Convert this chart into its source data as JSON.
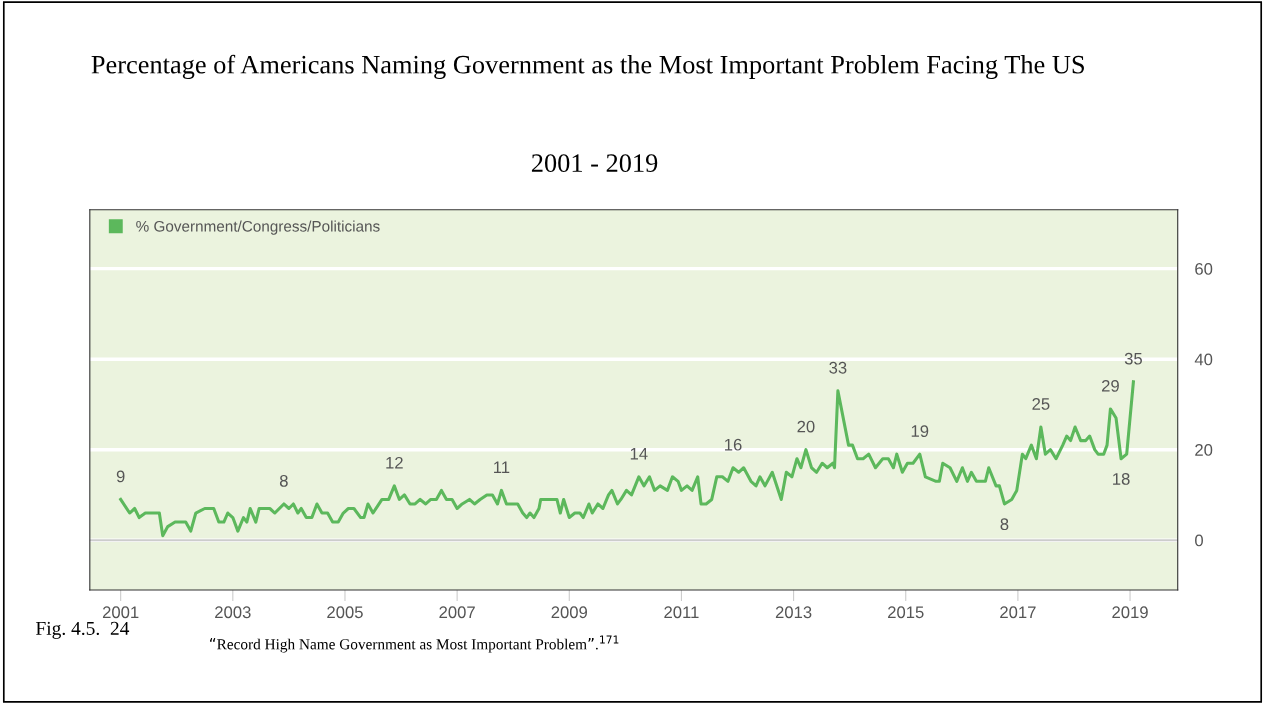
{
  "chart_data": {
    "type": "line",
    "title": "Percentage of Americans Naming Government as the Most Important Problem Facing The US",
    "subtitle": "2001 - 2019",
    "annotations": [
      "Fig. 4.5.  24",
      "“Record High Name Government as Most Important Problem”.$^{171}$"
    ],
    "x": [
      2001.0,
      2001.16,
      2001.25,
      2001.33,
      2001.44,
      2001.53,
      2001.63,
      2001.69,
      2001.75,
      2001.84,
      2001.97,
      2002.06,
      2002.16,
      2002.25,
      2002.34,
      2002.5,
      2002.66,
      2002.75,
      2002.84,
      2002.91,
      2003.0,
      2003.09,
      2003.19,
      2003.25,
      2003.31,
      2003.41,
      2003.47,
      2003.66,
      2003.75,
      2003.91,
      2004.0,
      2004.08,
      2004.16,
      2004.22,
      2004.31,
      2004.41,
      2004.5,
      2004.59,
      2004.69,
      2004.78,
      2004.88,
      2004.97,
      2005.06,
      2005.16,
      2005.28,
      2005.34,
      2005.41,
      2005.5,
      2005.66,
      2005.78,
      2005.88,
      2005.97,
      2006.06,
      2006.16,
      2006.25,
      2006.34,
      2006.44,
      2006.53,
      2006.63,
      2006.72,
      2006.81,
      2006.91,
      2007.0,
      2007.09,
      2007.22,
      2007.31,
      2007.41,
      2007.53,
      2007.63,
      2007.72,
      2007.79,
      2007.88,
      2007.97,
      2008.08,
      2008.17,
      2008.24,
      2008.3,
      2008.37,
      2008.46,
      2008.49,
      2008.78,
      2008.84,
      2008.9,
      2009.0,
      2009.1,
      2009.19,
      2009.25,
      2009.35,
      2009.41,
      2009.51,
      2009.6,
      2009.7,
      2009.76,
      2009.86,
      2009.92,
      2010.02,
      2010.11,
      2010.24,
      2010.33,
      2010.43,
      2010.52,
      2010.62,
      2010.75,
      2010.84,
      2010.94,
      2011.0,
      2011.1,
      2011.19,
      2011.29,
      2011.35,
      2011.44,
      2011.54,
      2011.63,
      2011.73,
      2011.83,
      2011.92,
      2012.02,
      2012.11,
      2012.24,
      2012.33,
      2012.4,
      2012.49,
      2012.62,
      2012.78,
      2012.87,
      2012.97,
      2013.06,
      2013.13,
      2013.22,
      2013.32,
      2013.41,
      2013.51,
      2013.6,
      2013.7,
      2013.73,
      2013.79,
      2013.98,
      2014.05,
      2014.14,
      2014.24,
      2014.34,
      2014.46,
      2014.59,
      2014.69,
      2014.78,
      2014.84,
      2014.94,
      2015.03,
      2015.13,
      2015.25,
      2015.35,
      2015.54,
      2015.6,
      2015.66,
      2015.79,
      2015.91,
      2016.01,
      2016.1,
      2016.17,
      2016.26,
      2016.42,
      2016.48,
      2016.61,
      2016.67,
      2016.76,
      2016.89,
      2016.98,
      2017.08,
      2017.14,
      2017.24,
      2017.33,
      2017.41,
      2017.49,
      2017.58,
      2017.68,
      2017.8,
      2017.87,
      2017.94,
      2018.02,
      2018.12,
      2018.21,
      2018.28,
      2018.37,
      2018.43,
      2018.53,
      2018.59,
      2018.65,
      2018.75,
      2018.84,
      2018.94,
      2019.06
    ],
    "series": [
      {
        "name": "% Government/Congress/Politicians",
        "color": "#5cb85c",
        "values": [
          9,
          6,
          7,
          5,
          6,
          6,
          6,
          6,
          1,
          3,
          4,
          4,
          4,
          2,
          6,
          7,
          7,
          4,
          4,
          6,
          5,
          2,
          5,
          4,
          7,
          4,
          7,
          7,
          6,
          8,
          7,
          8,
          6,
          7,
          5,
          5,
          8,
          6,
          6,
          4,
          4,
          6,
          7,
          7,
          5,
          5,
          8,
          6,
          9,
          9,
          12,
          9,
          10,
          8,
          8,
          9,
          8,
          9,
          9,
          11,
          9,
          9,
          7,
          8,
          9,
          8,
          9,
          10,
          10,
          8,
          11,
          8,
          8,
          8,
          6,
          5,
          6,
          5,
          7,
          9,
          9,
          6,
          9,
          5,
          6,
          6,
          5,
          8,
          6,
          8,
          7,
          10,
          11,
          8,
          9,
          11,
          10,
          14,
          12,
          14,
          11,
          12,
          11,
          14,
          13,
          11,
          12,
          11,
          14,
          8,
          8,
          9,
          14,
          14,
          13,
          16,
          15,
          16,
          13,
          12,
          14,
          12,
          15,
          9,
          15,
          14,
          18,
          16,
          20,
          16,
          15,
          17,
          16,
          17,
          16,
          33,
          21,
          21,
          18,
          18,
          19,
          16,
          18,
          18,
          16,
          19,
          15,
          17,
          17,
          19,
          14,
          13,
          13,
          17,
          16,
          13,
          16,
          13,
          15,
          13,
          13,
          16,
          12,
          12,
          8,
          9,
          11,
          19,
          18,
          21,
          18,
          25,
          19,
          20,
          18,
          21,
          23,
          22,
          25,
          22,
          22,
          23,
          20,
          19,
          19,
          21,
          29,
          27,
          18,
          19,
          35
        ],
        "value_labels": [
          "9",
          null,
          null,
          null,
          null,
          null,
          null,
          null,
          null,
          null,
          null,
          null,
          null,
          null,
          null,
          null,
          null,
          null,
          null,
          null,
          null,
          null,
          null,
          null,
          null,
          null,
          null,
          null,
          null,
          "8",
          null,
          null,
          null,
          null,
          null,
          null,
          null,
          null,
          null,
          null,
          null,
          null,
          null,
          null,
          null,
          null,
          null,
          null,
          null,
          null,
          "12",
          null,
          null,
          null,
          null,
          null,
          null,
          null,
          null,
          null,
          null,
          null,
          null,
          null,
          null,
          null,
          null,
          null,
          null,
          null,
          "11",
          null,
          null,
          null,
          null,
          null,
          null,
          null,
          null,
          null,
          null,
          null,
          null,
          null,
          null,
          null,
          null,
          null,
          null,
          null,
          null,
          null,
          null,
          null,
          null,
          null,
          null,
          "14",
          null,
          null,
          null,
          null,
          null,
          null,
          null,
          null,
          null,
          null,
          null,
          null,
          null,
          null,
          null,
          null,
          null,
          "16",
          null,
          null,
          null,
          null,
          null,
          null,
          null,
          null,
          null,
          null,
          null,
          null,
          "20",
          null,
          null,
          null,
          null,
          null,
          null,
          "33",
          null,
          null,
          null,
          null,
          null,
          null,
          null,
          null,
          null,
          null,
          null,
          null,
          null,
          "19",
          null,
          null,
          null,
          null,
          null,
          null,
          null,
          null,
          null,
          null,
          null,
          null,
          null,
          null,
          "8",
          null,
          null,
          null,
          null,
          null,
          null,
          "25",
          null,
          null,
          null,
          null,
          null,
          null,
          null,
          null,
          null,
          null,
          null,
          null,
          null,
          null,
          "29",
          null,
          "18",
          null,
          "35"
        ]
      }
    ],
    "xlim": [
      2000.45,
      2019.85
    ],
    "xticks": [
      2001,
      2003,
      2005,
      2007,
      2009,
      2011,
      2013,
      2015,
      2017,
      2019
    ],
    "ylim": [
      -11,
      73
    ],
    "yticks": [
      0,
      20,
      40,
      60
    ],
    "grid": "y",
    "legend": "top left"
  }
}
